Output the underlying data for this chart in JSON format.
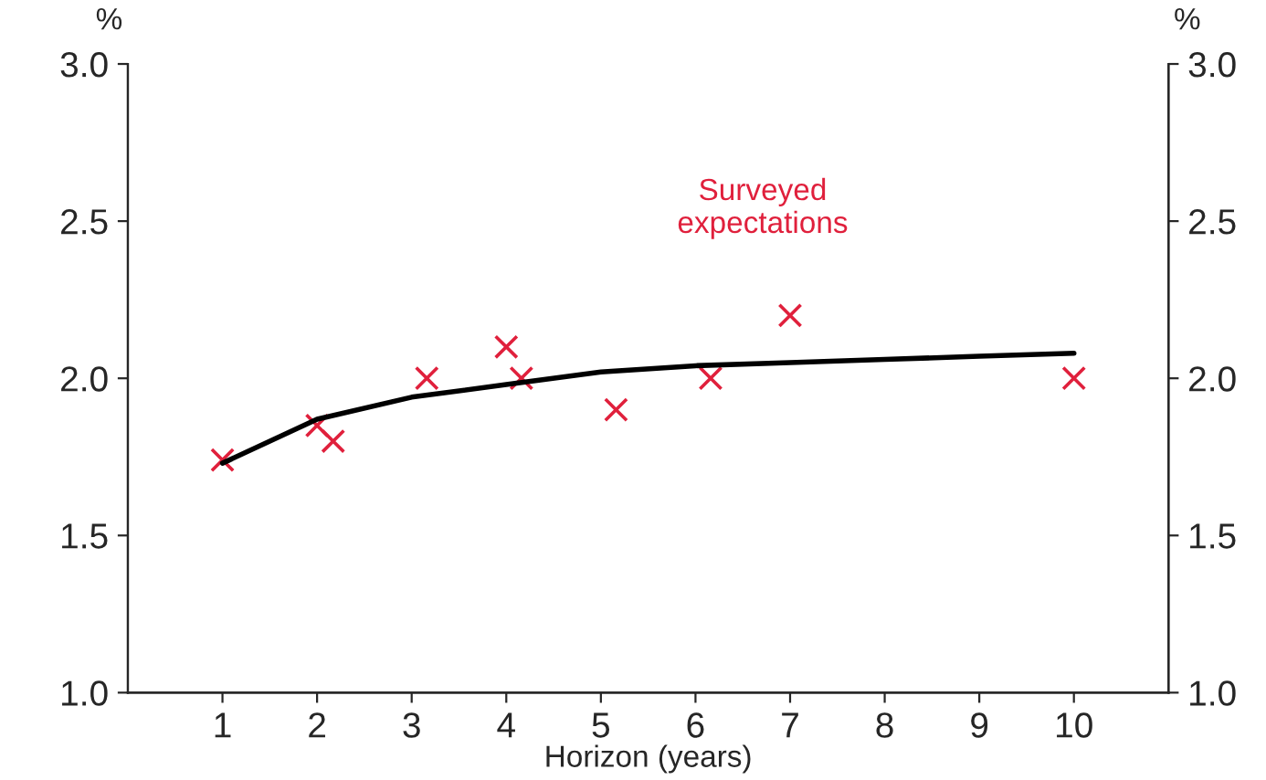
{
  "chart_data": {
    "type": "scatter",
    "xlabel": "Horizon (years)",
    "ylabel": "%",
    "y2label": "%",
    "xlim": [
      0,
      11
    ],
    "xticks": [
      1,
      2,
      3,
      4,
      5,
      6,
      7,
      8,
      9,
      10
    ],
    "ylim": [
      1.0,
      3.0
    ],
    "yticks": [
      {
        "value": 1.0,
        "label": "1.0"
      },
      {
        "value": 1.5,
        "label": "1.5"
      },
      {
        "value": 2.0,
        "label": "2.0"
      },
      {
        "value": 2.5,
        "label": "2.5"
      },
      {
        "value": 3.0,
        "label": "3.0"
      }
    ],
    "y2lim": [
      1.0,
      3.0
    ],
    "y2ticks": [
      {
        "value": 1.0,
        "label": "1.0"
      },
      {
        "value": 1.5,
        "label": "1.5"
      },
      {
        "value": 2.0,
        "label": "2.0"
      },
      {
        "value": 2.5,
        "label": "2.5"
      },
      {
        "value": 3.0,
        "label": "3.0"
      }
    ],
    "grid": false,
    "legend": false,
    "series": [
      {
        "type": "line",
        "color": "#000000",
        "marker": "none",
        "x": [
          1,
          2,
          3,
          4,
          5,
          6,
          7,
          8,
          9,
          10
        ],
        "values": [
          1.73,
          1.87,
          1.94,
          1.98,
          2.02,
          2.04,
          2.05,
          2.06,
          2.07,
          2.08
        ]
      },
      {
        "name": "Surveyed\nexpectations",
        "color": "#e0203c",
        "marker": "cross",
        "x": [
          1,
          2,
          2.17,
          3.16,
          4,
          4.16,
          5.16,
          6.16,
          7,
          10
        ],
        "values": [
          1.74,
          1.85,
          1.8,
          2.0,
          2.1,
          2.0,
          1.9,
          2.0,
          2.2,
          2.0
        ]
      }
    ]
  }
}
